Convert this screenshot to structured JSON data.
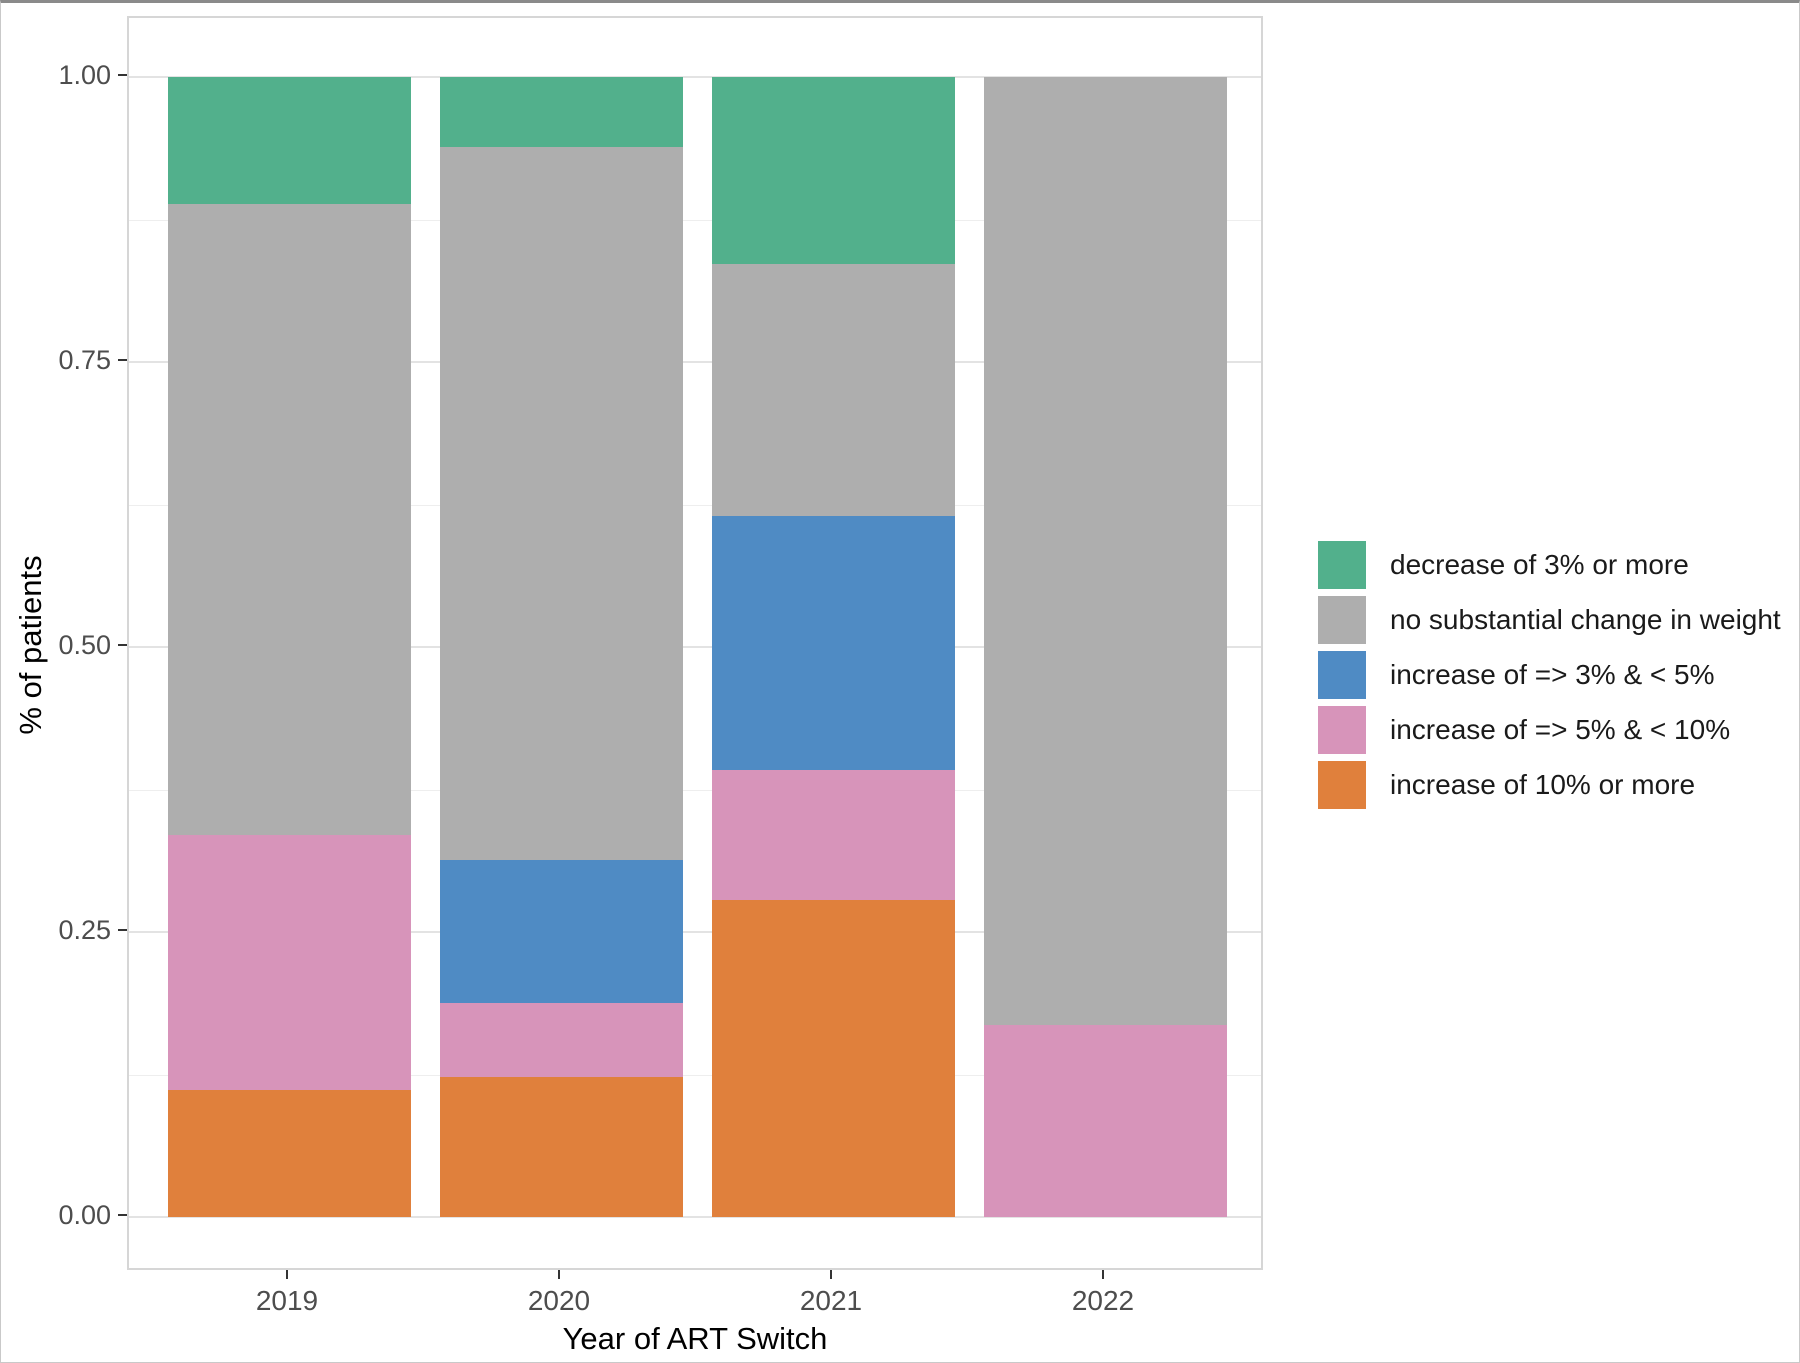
{
  "figure": {
    "background": "#ffffff"
  },
  "chart_data": {
    "type": "bar",
    "stacked": true,
    "normalized": true,
    "title": "",
    "xlabel": "Year of ART Switch",
    "ylabel": "% of patients",
    "categories": [
      "2019",
      "2020",
      "2021",
      "2022"
    ],
    "series": [
      {
        "name": "decrease of 3% or more",
        "color": "#52b08c",
        "values": [
          0.111,
          0.061,
          0.164,
          0.0
        ]
      },
      {
        "name": "no substantial change in weight",
        "color": "#aeaeae",
        "values": [
          0.554,
          0.626,
          0.221,
          0.832
        ]
      },
      {
        "name": "increase of => 3% & < 5%",
        "color": "#4f8bc4",
        "values": [
          0.0,
          0.125,
          0.223,
          0.0
        ]
      },
      {
        "name": "increase of => 5% & < 10%",
        "color": "#d794ba",
        "values": [
          0.224,
          0.065,
          0.114,
          0.168
        ]
      },
      {
        "name": "increase of 10% or more",
        "color": "#e0803c",
        "values": [
          0.111,
          0.123,
          0.278,
          0.0
        ]
      }
    ],
    "stack_order_bottom_to_top": [
      "increase of 10% or more",
      "increase of => 5% & < 10%",
      "increase of => 3% & < 5%",
      "no substantial change in weight",
      "decrease of 3% or more"
    ],
    "ylim": [
      0,
      1
    ],
    "y_ticks": [
      "0.00",
      "0.25",
      "0.50",
      "0.75",
      "1.00"
    ],
    "y_tick_values": [
      0,
      0.25,
      0.5,
      0.75,
      1
    ],
    "y_minor_values": [
      0.125,
      0.375,
      0.625,
      0.875
    ],
    "grid": "horizontal-major-minor",
    "legend_position": "right"
  }
}
